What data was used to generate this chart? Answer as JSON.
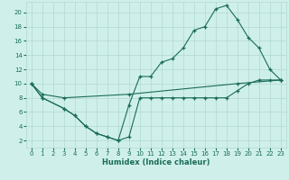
{
  "xlabel": "Humidex (Indice chaleur)",
  "bg_color": "#cff0ea",
  "line_color": "#1a6b5a",
  "grid_color": "#b0d8cf",
  "line1_x": [
    0,
    1,
    3,
    4,
    5,
    6,
    7,
    8,
    9,
    10,
    11,
    12,
    13,
    14,
    15,
    16,
    17,
    18,
    19,
    20,
    21,
    22,
    23
  ],
  "line1_y": [
    10,
    8,
    6.5,
    5.5,
    4,
    3,
    2.5,
    2,
    2.5,
    8,
    8,
    8,
    8,
    8,
    8,
    8,
    8,
    8,
    9,
    10,
    10.5,
    10.5,
    10.5
  ],
  "line2_x": [
    0,
    1,
    3,
    4,
    5,
    6,
    7,
    8,
    9,
    10,
    11,
    12,
    13,
    14,
    15,
    16,
    17,
    18,
    19,
    20,
    21,
    22,
    23
  ],
  "line2_y": [
    10,
    8,
    6.5,
    5.5,
    4,
    3,
    2.5,
    2,
    7,
    11,
    11,
    13,
    13.5,
    15,
    17.5,
    18,
    20.5,
    21,
    19,
    16.5,
    15,
    12,
    10.5
  ],
  "line3_x": [
    0,
    1,
    3,
    9,
    19,
    23
  ],
  "line3_y": [
    10,
    8.5,
    8,
    8.5,
    10,
    10.5
  ],
  "xlim": [
    -0.5,
    23.5
  ],
  "ylim": [
    1,
    21.5
  ],
  "xticks": [
    0,
    1,
    2,
    3,
    4,
    5,
    6,
    7,
    8,
    9,
    10,
    11,
    12,
    13,
    14,
    15,
    16,
    17,
    18,
    19,
    20,
    21,
    22,
    23
  ],
  "yticks": [
    2,
    4,
    6,
    8,
    10,
    12,
    14,
    16,
    18,
    20
  ],
  "xlabel_fontsize": 6.0,
  "tick_fontsize": 5.0
}
